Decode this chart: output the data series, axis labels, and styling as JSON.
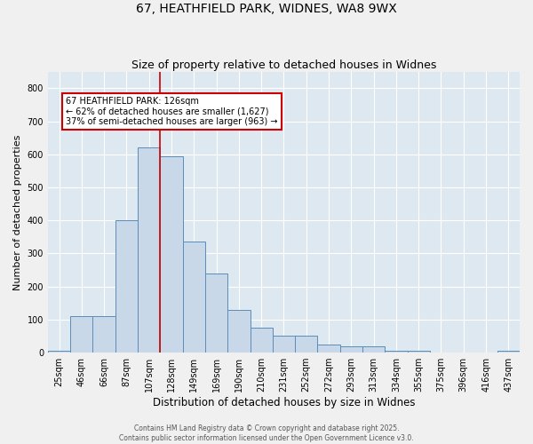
{
  "title": "67, HEATHFIELD PARK, WIDNES, WA8 9WX",
  "subtitle": "Size of property relative to detached houses in Widnes",
  "xlabel": "Distribution of detached houses by size in Widnes",
  "ylabel": "Number of detached properties",
  "bar_color": "#c8d8e8",
  "bar_edge_color": "#5b8db8",
  "categories": [
    "25sqm",
    "46sqm",
    "66sqm",
    "87sqm",
    "107sqm",
    "128sqm",
    "149sqm",
    "169sqm",
    "190sqm",
    "210sqm",
    "231sqm",
    "252sqm",
    "272sqm",
    "293sqm",
    "313sqm",
    "334sqm",
    "355sqm",
    "375sqm",
    "396sqm",
    "416sqm",
    "437sqm"
  ],
  "values": [
    5,
    110,
    110,
    400,
    620,
    595,
    335,
    240,
    130,
    75,
    50,
    50,
    25,
    18,
    18,
    5,
    5,
    0,
    0,
    0,
    5
  ],
  "property_line_idx": 5,
  "annotation_text": "67 HEATHFIELD PARK: 126sqm\n← 62% of detached houses are smaller (1,627)\n37% of semi-detached houses are larger (963) →",
  "annotation_box_color": "#ffffff",
  "annotation_box_edge": "#cc0000",
  "vline_color": "#cc0000",
  "ylim": [
    0,
    850
  ],
  "yticks": [
    0,
    100,
    200,
    300,
    400,
    500,
    600,
    700,
    800
  ],
  "background_color": "#dde8f0",
  "grid_color": "#ffffff",
  "footer_line1": "Contains HM Land Registry data © Crown copyright and database right 2025.",
  "footer_line2": "Contains public sector information licensed under the Open Government Licence v3.0.",
  "title_fontsize": 10,
  "subtitle_fontsize": 9,
  "ylabel_fontsize": 8,
  "xlabel_fontsize": 8.5,
  "tick_fontsize": 7,
  "annotation_fontsize": 7,
  "footer_fontsize": 5.5,
  "fig_bg": "#f0f0f0"
}
